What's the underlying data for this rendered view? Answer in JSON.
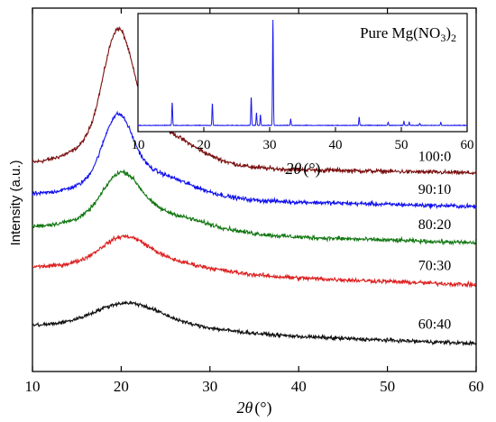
{
  "chart_data": [
    {
      "type": "line",
      "xlabel_symbol": "2θ",
      "xlabel_unit": "(°)",
      "ylabel": "Intensity (a.u.)",
      "xlim": [
        10,
        60
      ],
      "x_ticks": [
        "10",
        "20",
        "30",
        "40",
        "50",
        "60"
      ],
      "y_ticks": [],
      "grid": false,
      "legend": "none",
      "series": [
        {
          "name": "100:0",
          "color": "#7a1010",
          "baseline": 72,
          "peak_x": 19.6,
          "peak_height": 70,
          "peak_width": 1.6,
          "shoulder_height": 32,
          "shoulder_width": 5,
          "tail": 6,
          "noise": 2.2,
          "x": [
            10,
            15,
            18,
            19.6,
            21,
            25,
            30,
            40,
            50,
            60
          ],
          "values": [
            74,
            78,
            100,
            142,
            110,
            92,
            84,
            80,
            76,
            72
          ]
        },
        {
          "name": "90:10",
          "color": "#1010ee",
          "baseline": 48,
          "peak_x": 19.6,
          "peak_height": 42,
          "peak_width": 1.6,
          "shoulder_height": 20,
          "shoulder_width": 5,
          "tail": 8,
          "noise": 2.2,
          "x": [
            10,
            15,
            18,
            19.6,
            21,
            25,
            30,
            40,
            50,
            60
          ],
          "values": [
            50,
            55,
            70,
            90,
            76,
            64,
            58,
            56,
            52,
            48
          ]
        },
        {
          "name": "80:20",
          "color": "#117711",
          "baseline": 22,
          "peak_x": 20.0,
          "peak_height": 28,
          "peak_width": 2.0,
          "shoulder_height": 16,
          "shoulder_width": 6,
          "tail": 10,
          "noise": 2.2,
          "x": [
            10,
            15,
            18,
            20,
            22,
            25,
            30,
            40,
            50,
            60
          ],
          "values": [
            23,
            30,
            42,
            57,
            46,
            38,
            34,
            30,
            26,
            22
          ]
        },
        {
          "name": "70:30",
          "color": "#dd2020",
          "baseline": -8,
          "peak_x": 20.3,
          "peak_height": 16,
          "peak_width": 2.5,
          "shoulder_height": 10,
          "shoulder_width": 6,
          "tail": 12,
          "noise": 2.2,
          "x": [
            10,
            15,
            18,
            20.3,
            23,
            25,
            30,
            40,
            50,
            60
          ],
          "values": [
            -7,
            0,
            10,
            20,
            12,
            6,
            2,
            -2,
            -5,
            -8
          ]
        },
        {
          "name": "60:40",
          "color": "#111111",
          "baseline": -50,
          "peak_x": 20.6,
          "peak_height": 14,
          "peak_width": 3.5,
          "shoulder_height": 6,
          "shoulder_width": 7,
          "tail": 12,
          "noise": 2.0,
          "x": [
            10,
            15,
            18,
            20.6,
            23,
            25,
            30,
            40,
            50,
            60
          ],
          "values": [
            -45,
            -40,
            -34,
            -28,
            -34,
            -38,
            -42,
            -46,
            -48,
            -50
          ]
        }
      ]
    },
    {
      "type": "line",
      "title": "Pure Mg(NO3)2",
      "title_main": "Pure Mg(NO",
      "title_sub1": "3",
      "title_mid": ")",
      "title_sub2": "2",
      "xlabel_symbol": "2θ",
      "xlabel_unit": "(°)",
      "xlim": [
        10,
        60
      ],
      "x_ticks": [
        "10",
        "20",
        "30",
        "40",
        "50",
        "60"
      ],
      "grid": false,
      "color": "#1a1aee",
      "peaks": [
        {
          "x": 15.2,
          "height": 22
        },
        {
          "x": 21.3,
          "height": 21
        },
        {
          "x": 27.2,
          "height": 27
        },
        {
          "x": 28.0,
          "height": 12
        },
        {
          "x": 28.6,
          "height": 10
        },
        {
          "x": 30.5,
          "height": 100
        },
        {
          "x": 33.2,
          "height": 6
        },
        {
          "x": 43.6,
          "height": 8
        },
        {
          "x": 48.0,
          "height": 3
        },
        {
          "x": 50.4,
          "height": 4
        },
        {
          "x": 51.2,
          "height": 3
        },
        {
          "x": 52.8,
          "height": 2
        },
        {
          "x": 56.0,
          "height": 3
        }
      ]
    }
  ]
}
